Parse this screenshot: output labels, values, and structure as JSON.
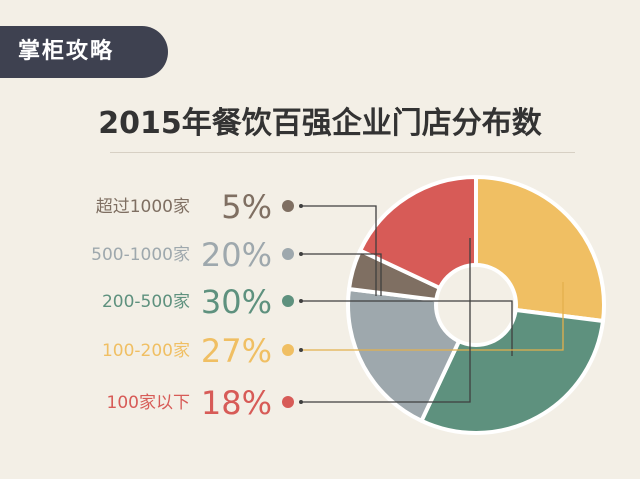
{
  "badge": {
    "text": "掌柜攻略"
  },
  "chart_data": {
    "type": "pie",
    "style": "donut",
    "title": "2015年餐饮百强企业门店分布数",
    "categories": [
      "超过1000家",
      "500-1000家",
      "200-500家",
      "100-200家",
      "100家以下"
    ],
    "values": [
      5,
      20,
      30,
      27,
      18
    ],
    "labels": [
      "5%",
      "20%",
      "30%",
      "27%",
      "18%"
    ],
    "colors": [
      "#7f6f62",
      "#9ea8ad",
      "#5e917e",
      "#f0bf63",
      "#d75b57"
    ]
  },
  "colors": {
    "background": "#f3efe6",
    "badge": "#3e4150",
    "title": "#333333"
  }
}
